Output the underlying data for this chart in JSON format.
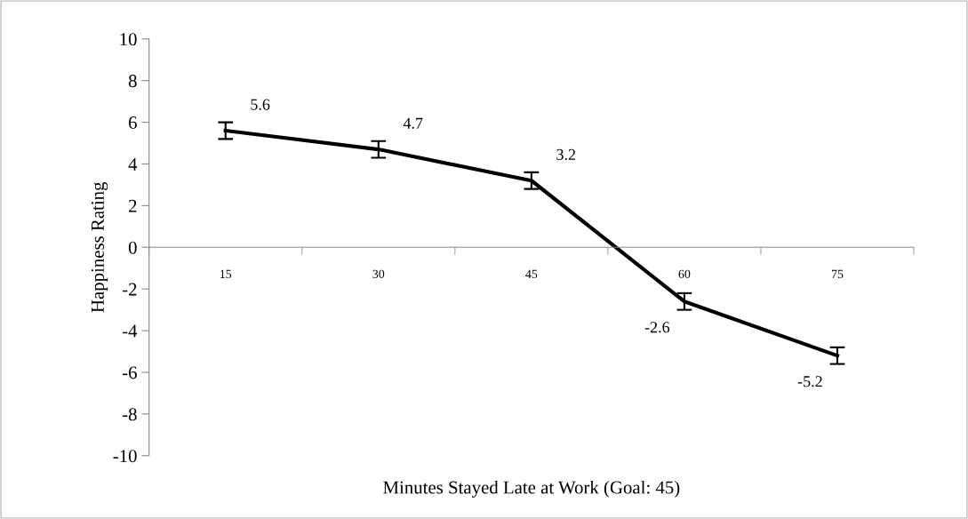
{
  "chart_data": {
    "type": "line",
    "xlabel": "Minutes Stayed Late at Work (Goal: 45)",
    "ylabel": "Happiness Rating",
    "categories": [
      "15",
      "30",
      "45",
      "60",
      "75"
    ],
    "series": [
      {
        "color": "#000000",
        "values": [
          5.6,
          4.7,
          3.2,
          -2.6,
          -5.2
        ],
        "errors": [
          0.4,
          0.4,
          0.4,
          0.4,
          0.4
        ],
        "value_labels": [
          "5.6",
          "4.7",
          "3.2",
          "-2.6",
          "-5.2"
        ]
      }
    ],
    "ylim": [
      -10,
      10
    ],
    "yticks": [
      -10,
      -8,
      -6,
      -4,
      -2,
      0,
      2,
      4,
      6,
      8,
      10
    ],
    "grid": false,
    "legend": false,
    "marker": "none",
    "line_style": "solid"
  }
}
